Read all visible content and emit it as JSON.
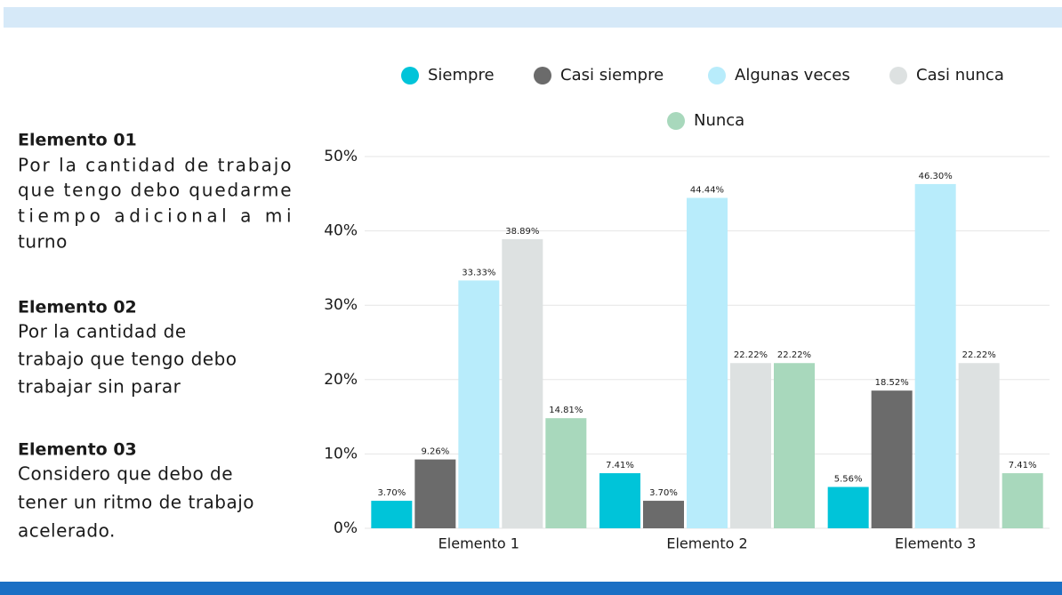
{
  "side_panel": [
    {
      "title": "Elemento 01",
      "lines": [
        "Por la cantidad de trabajo",
        "que tengo debo quedarme",
        "tiempo adicional a mi",
        "turno"
      ]
    },
    {
      "title": "Elemento 02",
      "lines": [
        "Por la cantidad de",
        "trabajo que tengo debo",
        "trabajar sin parar"
      ]
    },
    {
      "title": "Elemento 03",
      "lines": [
        "Considero que debo de",
        "tener un ritmo de trabajo",
        "acelerado."
      ]
    }
  ],
  "chart_data": {
    "type": "bar",
    "categories": [
      "Elemento 1",
      "Elemento 2",
      "Elemento 3"
    ],
    "series": [
      {
        "name": "Siempre",
        "color": "#00c4d9",
        "values": [
          3.7,
          7.41,
          5.56
        ],
        "value_labels": [
          "3.70%",
          "7.41%",
          "5.56%"
        ]
      },
      {
        "name": "Casi siempre",
        "color": "#6b6b6b",
        "values": [
          9.26,
          3.7,
          18.52
        ],
        "value_labels": [
          "9.26%",
          "3.70%",
          "18.52%"
        ]
      },
      {
        "name": "Algunas veces",
        "color": "#b8ecfb",
        "values": [
          33.33,
          44.44,
          46.3
        ],
        "value_labels": [
          "33.33%",
          "44.44%",
          "46.30%"
        ]
      },
      {
        "name": "Casi nunca",
        "color": "#dde1e1",
        "values": [
          38.89,
          22.22,
          22.22
        ],
        "value_labels": [
          "38.89%",
          "22.22%",
          "22.22%"
        ]
      },
      {
        "name": "Nunca",
        "color": "#a8d8bc",
        "values": [
          14.81,
          22.22,
          7.41
        ],
        "value_labels": [
          "14.81%",
          "22.22%",
          "7.41%"
        ]
      }
    ],
    "ylim": [
      0,
      50
    ],
    "yticks": [
      {
        "value": 0,
        "label": "0%"
      },
      {
        "value": 10,
        "label": "10%"
      },
      {
        "value": 20,
        "label": "20%"
      },
      {
        "value": 30,
        "label": "30%"
      },
      {
        "value": 40,
        "label": "40%"
      },
      {
        "value": 50,
        "label": "50%"
      }
    ],
    "grid": true,
    "legend": "top"
  }
}
